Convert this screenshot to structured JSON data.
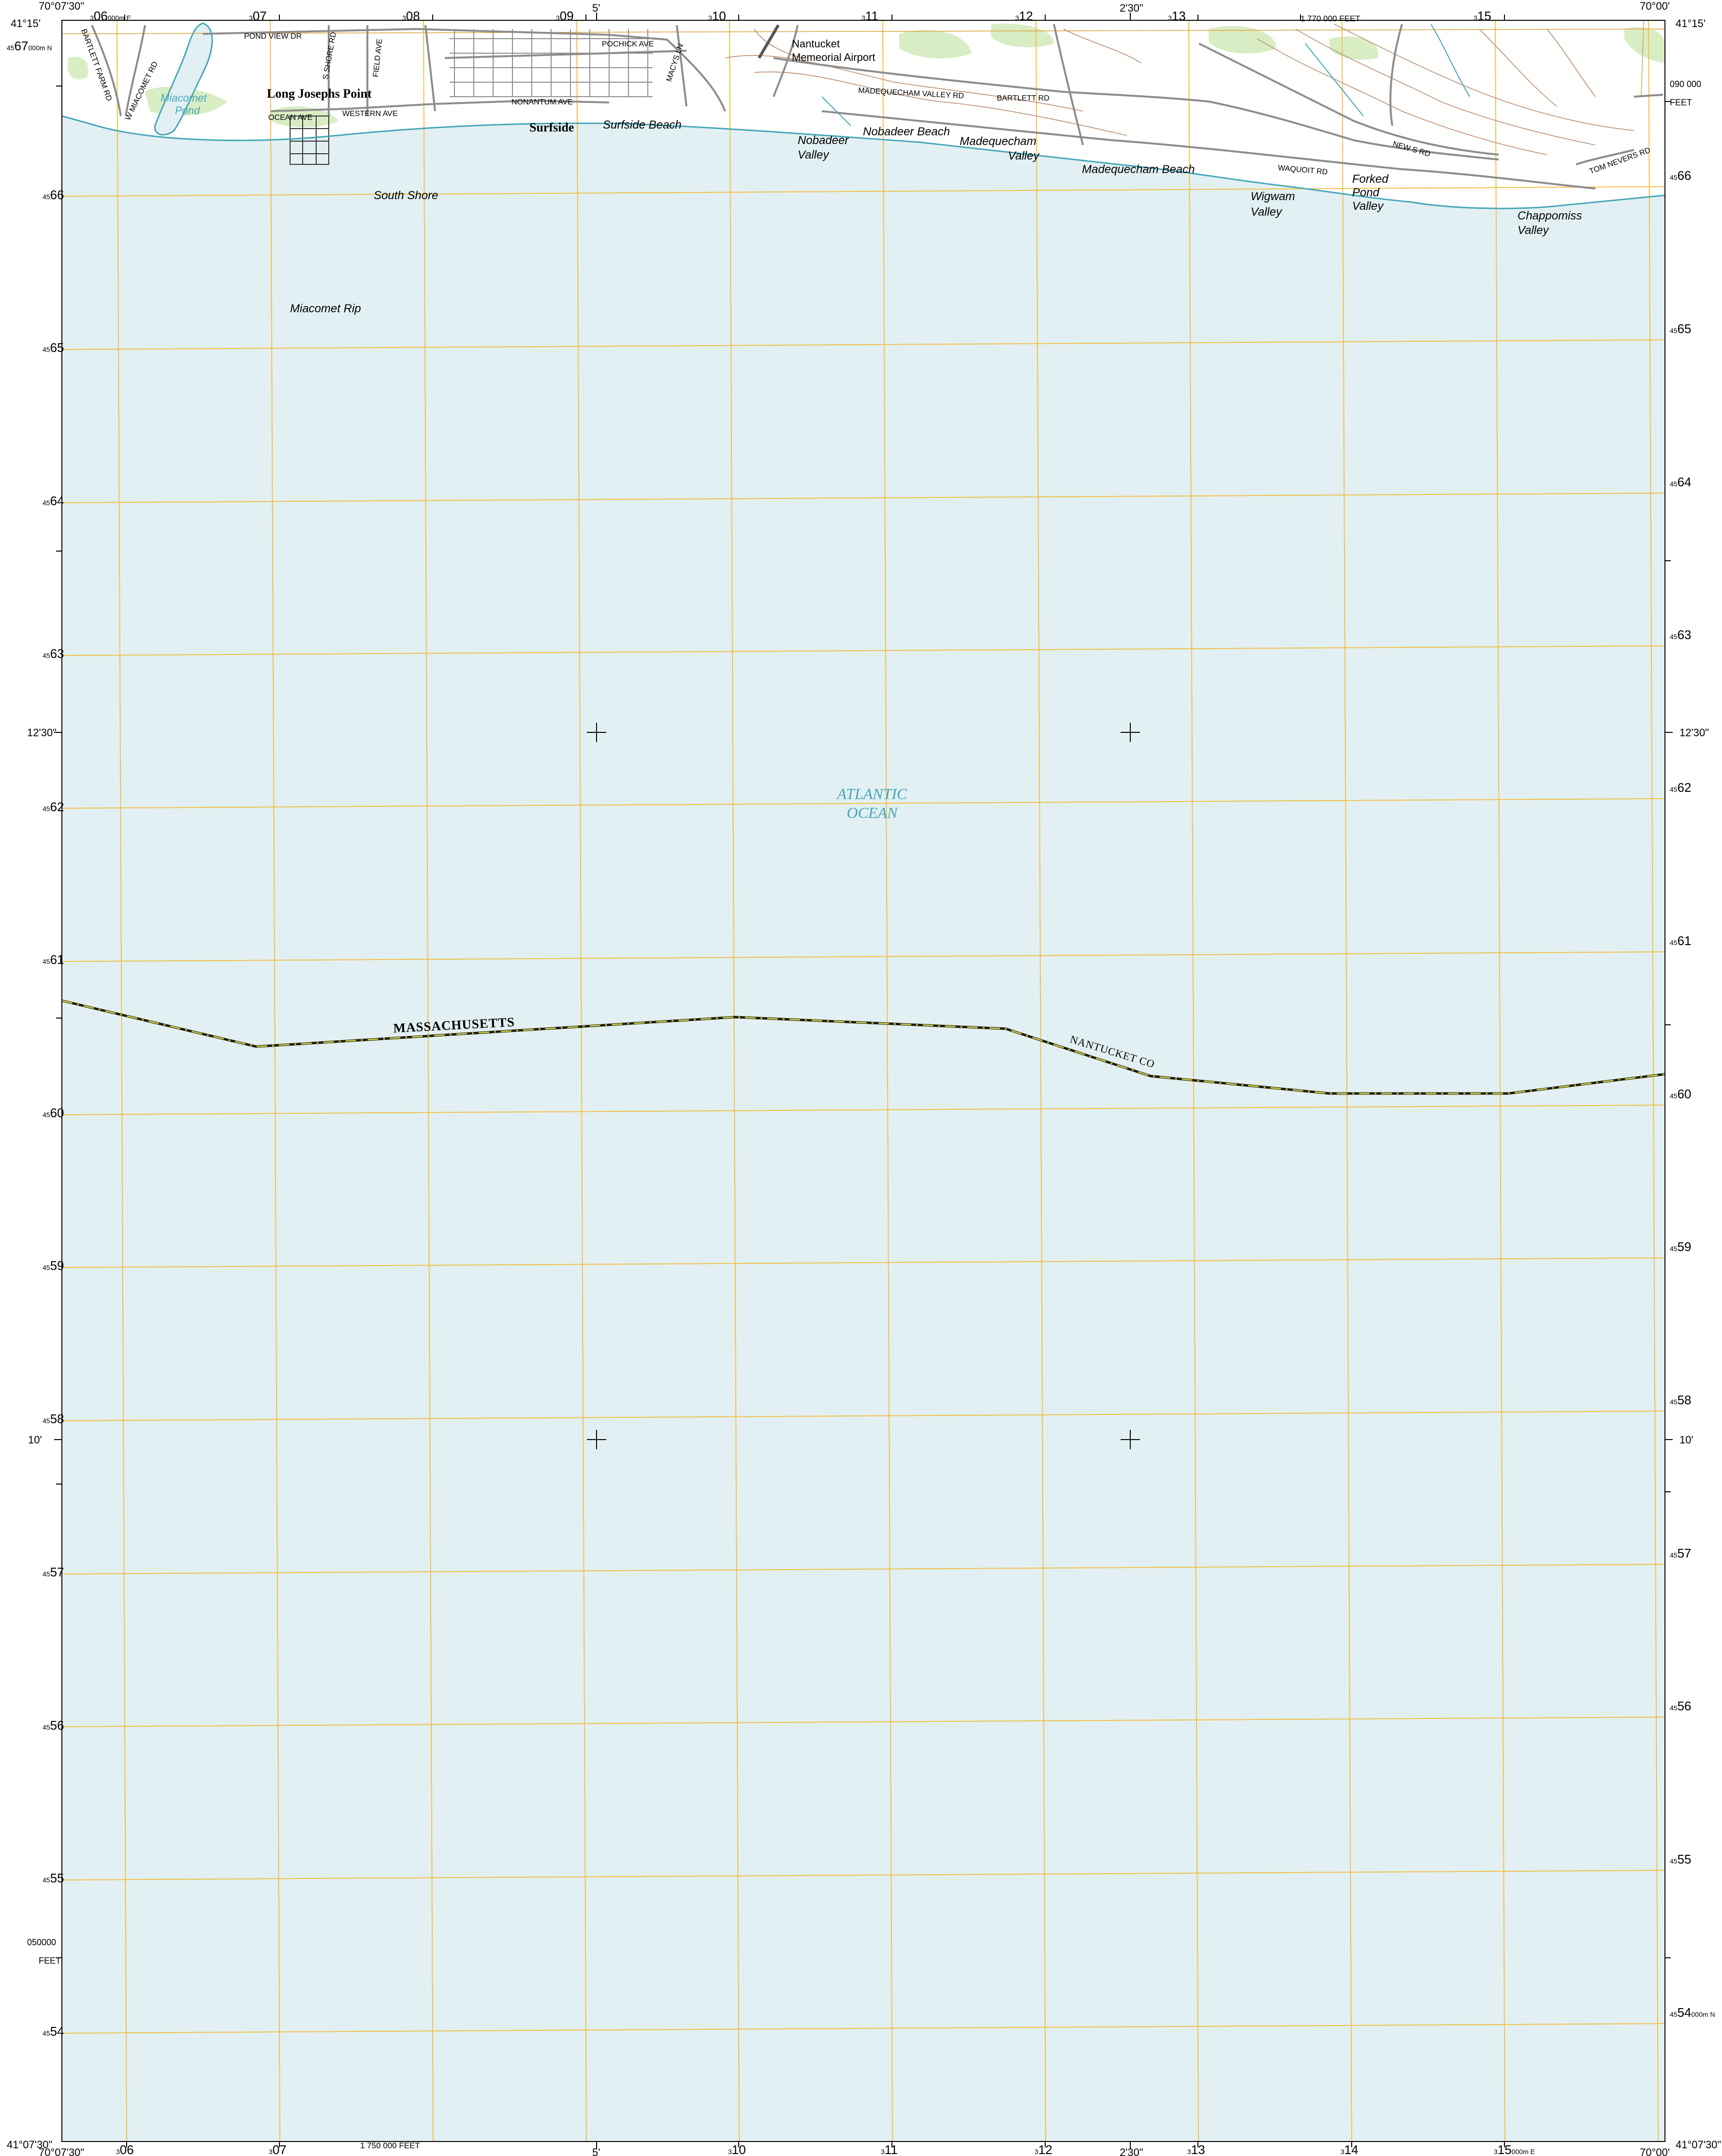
{
  "map": {
    "water_name": "ATLANTIC OCEAN",
    "water_lines": [
      "ATLANTIC",
      "OCEAN"
    ],
    "state_label": "MASSACHUSETTS",
    "county_label": "NANTUCKET CO",
    "corners": {
      "top_left_lon": "70°07'30\"",
      "top_left_lat": "41°15'",
      "top_right_lon": "70°00'",
      "top_right_lat": "41°15'",
      "bottom_left_lat": "41°07'30\"",
      "bottom_left_lon": "70°07'30\"",
      "bottom_right_lat": "41°07'30\"",
      "bottom_right_lon": "70°00'"
    },
    "top_ticks": {
      "five": "5'",
      "two_thirty": "2'30\""
    },
    "bottom_ticks": {
      "five": "5'",
      "two_thirty": "2'30\""
    },
    "side_ticks": {
      "twelve_thirty": "12'30\"",
      "ten": "10'"
    },
    "state_plane": {
      "top_feet": "1 770 000 FEET",
      "bottom_feet": "1 750 000 FEET",
      "right_value": "090 000",
      "right_unit": "FEET",
      "left_value": "050000",
      "left_unit": "FEET"
    },
    "grid_top": {
      "first_sup": "3",
      "first_main": "06",
      "first_suffix": "000m E",
      "sup": "3",
      "labels": [
        "07",
        "08",
        "09",
        "10",
        "11",
        "12",
        "13",
        "15"
      ]
    },
    "grid_bottom": {
      "sup": "3",
      "labels": [
        "06",
        "07",
        "10",
        "11",
        "12",
        "13",
        "14"
      ],
      "last_main": "15",
      "last_suffix": "000m E"
    },
    "grid_left": {
      "sup": "45",
      "first_main": "67",
      "first_suffix": "000m N",
      "labels": [
        "66",
        "65",
        "64",
        "63",
        "62",
        "61",
        "60",
        "59",
        "58",
        "57",
        "56",
        "55",
        "54"
      ]
    },
    "grid_right": {
      "sup": "45",
      "labels": [
        "66",
        "65",
        "64",
        "63",
        "62",
        "61",
        "60",
        "59",
        "58",
        "57",
        "56",
        "55"
      ],
      "last_main": "54",
      "last_suffix": "000m N"
    },
    "places": {
      "long_josephs_point": "Long Josephs Point",
      "surfside": "Surfside",
      "surfside_beach": "Surfside Beach",
      "south_shore": "South Shore",
      "miacomet_rip": "Miacomet Rip",
      "miacomet_pond_1": "Miacomet",
      "miacomet_pond_2": "Pond",
      "airport_1": "Nantucket",
      "airport_2": "Memeorial Airport",
      "nobadeer_valley_1": "Nobadeer",
      "nobadeer_valley_2": "Valley",
      "nobadeer_beach": "Nobadeer Beach",
      "madequecham_valley_1": "Madequecham",
      "madequecham_valley_2": "Valley",
      "madequecham_beach": "Madequecham Beach",
      "wigwam_valley_1": "Wigwam",
      "wigwam_valley_2": "Valley",
      "forked_pond_valley_1": "Forked",
      "forked_pond_valley_2": "Pond",
      "forked_pond_valley_3": "Valley",
      "chappomiss_valley_1": "Chappomiss",
      "chappomiss_valley_2": "Valley"
    },
    "roads": {
      "bartlett_farm": "BARTLETT FARM RD",
      "w_miacomet": "W MIACOMET RD",
      "pond_view": "POND VIEW DR",
      "s_shore": "S SHORE RD",
      "field": "FIELD AVE",
      "ocean": "OCEAN AVE",
      "western": "WESTERN AVE",
      "nonantum": "NONANTUM AVE",
      "pochick": "POCHICK AVE",
      "macys": "MACYS LN",
      "madequecham_valley": "MADEQUECHAM VALLEY RD",
      "bartlett": "BARTLETT RD",
      "new_s": "NEW S RD",
      "waquoit": "WAQUOIT RD",
      "tom_nevers": "TOM NEVERS RD"
    },
    "colors": {
      "water": "#e2f0f3",
      "land": "#ffffff",
      "vegetation": "#d9edc4",
      "grid_utm": "#f2c04a",
      "grid_plane": "#d9a43a",
      "road": "#8c8c8c",
      "contour": "#b98a6a",
      "hydro": "#45a6b8",
      "boundary": "#6b6b00"
    }
  }
}
